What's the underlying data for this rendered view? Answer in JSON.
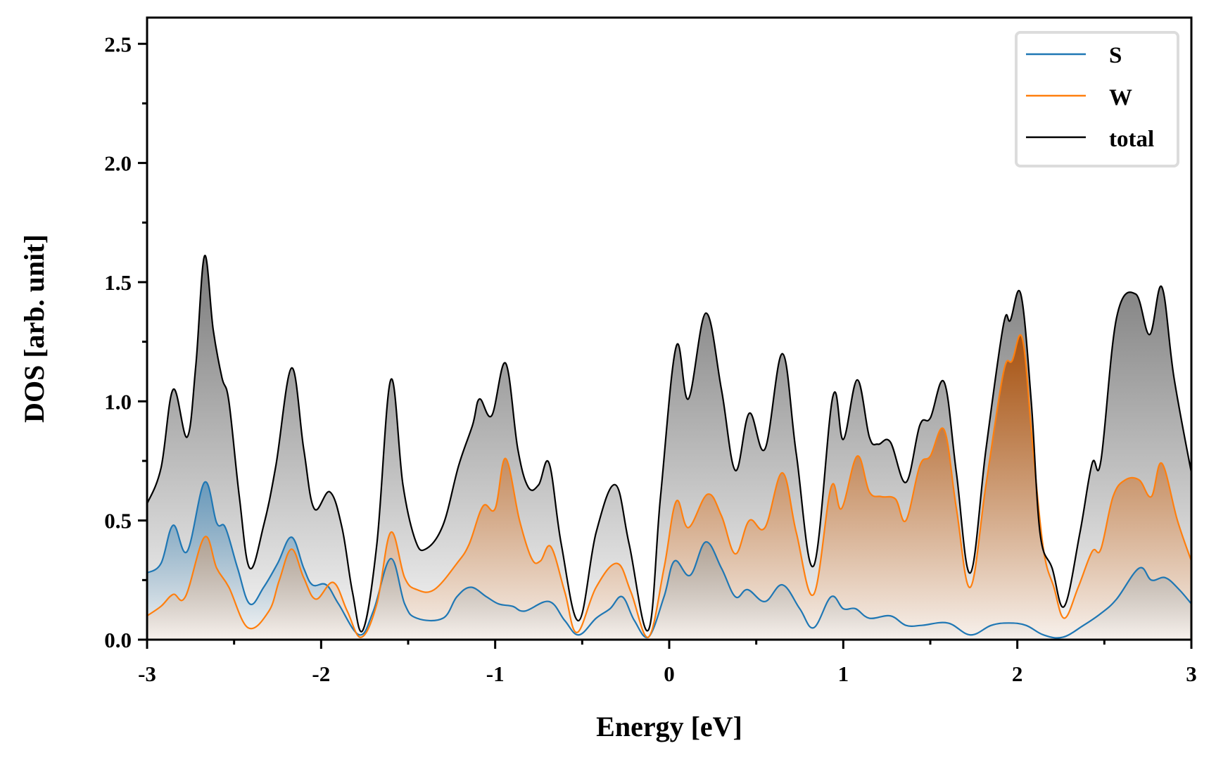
{
  "chart_data": {
    "type": "area",
    "title": "",
    "xlabel": "Energy [eV]",
    "ylabel": "DOS [arb. unit]",
    "xlim": [
      -3,
      3
    ],
    "ylim": [
      0,
      2.61
    ],
    "grid": false,
    "legend_position": "top-right",
    "x_ticks": [
      -3,
      -2,
      -1,
      0,
      1,
      2,
      3
    ],
    "x_tick_labels": [
      "-3",
      "-2",
      "-1",
      "0",
      "1",
      "2",
      "3"
    ],
    "y_ticks": [
      0.0,
      0.5,
      1.0,
      1.5,
      2.0,
      2.5
    ],
    "y_tick_labels": [
      "0.0",
      "0.5",
      "1.0",
      "1.5",
      "2.0",
      "2.5"
    ],
    "series": [
      {
        "name": "S",
        "color": "#1f77b4",
        "fill_color": "#1f77b4",
        "points": [
          [
            -3.0,
            0.28
          ],
          [
            -2.92,
            0.32
          ],
          [
            -2.85,
            0.48
          ],
          [
            -2.77,
            0.37
          ],
          [
            -2.67,
            0.66
          ],
          [
            -2.6,
            0.49
          ],
          [
            -2.55,
            0.47
          ],
          [
            -2.48,
            0.3
          ],
          [
            -2.41,
            0.15
          ],
          [
            -2.33,
            0.22
          ],
          [
            -2.25,
            0.32
          ],
          [
            -2.17,
            0.43
          ],
          [
            -2.1,
            0.3
          ],
          [
            -2.05,
            0.23
          ],
          [
            -1.97,
            0.23
          ],
          [
            -1.9,
            0.15
          ],
          [
            -1.78,
            0.02
          ],
          [
            -1.7,
            0.12
          ],
          [
            -1.6,
            0.34
          ],
          [
            -1.52,
            0.15
          ],
          [
            -1.45,
            0.09
          ],
          [
            -1.3,
            0.09
          ],
          [
            -1.22,
            0.18
          ],
          [
            -1.14,
            0.22
          ],
          [
            -1.05,
            0.18
          ],
          [
            -0.98,
            0.15
          ],
          [
            -0.9,
            0.14
          ],
          [
            -0.83,
            0.12
          ],
          [
            -0.69,
            0.16
          ],
          [
            -0.6,
            0.08
          ],
          [
            -0.52,
            0.02
          ],
          [
            -0.42,
            0.09
          ],
          [
            -0.34,
            0.13
          ],
          [
            -0.27,
            0.18
          ],
          [
            -0.2,
            0.08
          ],
          [
            -0.12,
            0.01
          ],
          [
            -0.03,
            0.18
          ],
          [
            0.03,
            0.33
          ],
          [
            0.12,
            0.27
          ],
          [
            0.21,
            0.41
          ],
          [
            0.3,
            0.3
          ],
          [
            0.38,
            0.18
          ],
          [
            0.45,
            0.21
          ],
          [
            0.55,
            0.16
          ],
          [
            0.65,
            0.23
          ],
          [
            0.75,
            0.13
          ],
          [
            0.83,
            0.05
          ],
          [
            0.93,
            0.18
          ],
          [
            1.0,
            0.13
          ],
          [
            1.07,
            0.13
          ],
          [
            1.15,
            0.09
          ],
          [
            1.27,
            0.1
          ],
          [
            1.36,
            0.06
          ],
          [
            1.45,
            0.06
          ],
          [
            1.6,
            0.07
          ],
          [
            1.73,
            0.02
          ],
          [
            1.85,
            0.06
          ],
          [
            1.95,
            0.07
          ],
          [
            2.05,
            0.06
          ],
          [
            2.15,
            0.02
          ],
          [
            2.26,
            0.01
          ],
          [
            2.38,
            0.06
          ],
          [
            2.48,
            0.11
          ],
          [
            2.57,
            0.17
          ],
          [
            2.7,
            0.3
          ],
          [
            2.77,
            0.25
          ],
          [
            2.85,
            0.26
          ],
          [
            2.93,
            0.21
          ],
          [
            3.0,
            0.15
          ]
        ]
      },
      {
        "name": "W",
        "color": "#ff7f0e",
        "fill_color": "#a65211",
        "points": [
          [
            -3.0,
            0.1
          ],
          [
            -2.92,
            0.14
          ],
          [
            -2.85,
            0.19
          ],
          [
            -2.78,
            0.18
          ],
          [
            -2.67,
            0.43
          ],
          [
            -2.6,
            0.3
          ],
          [
            -2.53,
            0.22
          ],
          [
            -2.42,
            0.05
          ],
          [
            -2.3,
            0.12
          ],
          [
            -2.24,
            0.25
          ],
          [
            -2.17,
            0.38
          ],
          [
            -2.1,
            0.26
          ],
          [
            -2.03,
            0.17
          ],
          [
            -1.93,
            0.24
          ],
          [
            -1.85,
            0.12
          ],
          [
            -1.77,
            0.01
          ],
          [
            -1.68,
            0.15
          ],
          [
            -1.6,
            0.45
          ],
          [
            -1.52,
            0.26
          ],
          [
            -1.45,
            0.21
          ],
          [
            -1.35,
            0.21
          ],
          [
            -1.22,
            0.32
          ],
          [
            -1.15,
            0.4
          ],
          [
            -1.07,
            0.56
          ],
          [
            -1.0,
            0.55
          ],
          [
            -0.94,
            0.76
          ],
          [
            -0.86,
            0.5
          ],
          [
            -0.79,
            0.34
          ],
          [
            -0.74,
            0.33
          ],
          [
            -0.68,
            0.39
          ],
          [
            -0.6,
            0.2
          ],
          [
            -0.53,
            0.03
          ],
          [
            -0.42,
            0.22
          ],
          [
            -0.3,
            0.32
          ],
          [
            -0.22,
            0.2
          ],
          [
            -0.12,
            0.01
          ],
          [
            -0.03,
            0.3
          ],
          [
            0.04,
            0.58
          ],
          [
            0.11,
            0.47
          ],
          [
            0.22,
            0.61
          ],
          [
            0.3,
            0.52
          ],
          [
            0.38,
            0.36
          ],
          [
            0.46,
            0.5
          ],
          [
            0.55,
            0.47
          ],
          [
            0.65,
            0.7
          ],
          [
            0.73,
            0.45
          ],
          [
            0.83,
            0.19
          ],
          [
            0.93,
            0.64
          ],
          [
            0.99,
            0.55
          ],
          [
            1.08,
            0.77
          ],
          [
            1.15,
            0.62
          ],
          [
            1.22,
            0.6
          ],
          [
            1.3,
            0.59
          ],
          [
            1.36,
            0.5
          ],
          [
            1.44,
            0.73
          ],
          [
            1.5,
            0.77
          ],
          [
            1.58,
            0.88
          ],
          [
            1.65,
            0.55
          ],
          [
            1.73,
            0.22
          ],
          [
            1.82,
            0.65
          ],
          [
            1.92,
            1.12
          ],
          [
            1.97,
            1.17
          ],
          [
            2.03,
            1.26
          ],
          [
            2.09,
            0.8
          ],
          [
            2.15,
            0.38
          ],
          [
            2.21,
            0.22
          ],
          [
            2.27,
            0.09
          ],
          [
            2.35,
            0.22
          ],
          [
            2.43,
            0.37
          ],
          [
            2.48,
            0.38
          ],
          [
            2.55,
            0.6
          ],
          [
            2.62,
            0.67
          ],
          [
            2.7,
            0.67
          ],
          [
            2.77,
            0.6
          ],
          [
            2.83,
            0.74
          ],
          [
            2.92,
            0.5
          ],
          [
            3.0,
            0.33
          ]
        ]
      },
      {
        "name": "total",
        "color": "#000000",
        "fill_color": "#7f7f7f",
        "points": [
          [
            -3.0,
            0.57
          ],
          [
            -2.92,
            0.72
          ],
          [
            -2.85,
            1.05
          ],
          [
            -2.77,
            0.85
          ],
          [
            -2.72,
            1.15
          ],
          [
            -2.67,
            1.61
          ],
          [
            -2.62,
            1.3
          ],
          [
            -2.57,
            1.1
          ],
          [
            -2.53,
            1.0
          ],
          [
            -2.47,
            0.6
          ],
          [
            -2.41,
            0.3
          ],
          [
            -2.33,
            0.48
          ],
          [
            -2.26,
            0.73
          ],
          [
            -2.17,
            1.14
          ],
          [
            -2.1,
            0.8
          ],
          [
            -2.04,
            0.55
          ],
          [
            -1.95,
            0.62
          ],
          [
            -1.88,
            0.47
          ],
          [
            -1.82,
            0.2
          ],
          [
            -1.76,
            0.04
          ],
          [
            -1.68,
            0.4
          ],
          [
            -1.6,
            1.09
          ],
          [
            -1.53,
            0.65
          ],
          [
            -1.46,
            0.42
          ],
          [
            -1.4,
            0.38
          ],
          [
            -1.3,
            0.48
          ],
          [
            -1.21,
            0.73
          ],
          [
            -1.13,
            0.9
          ],
          [
            -1.09,
            1.01
          ],
          [
            -1.02,
            0.94
          ],
          [
            -0.94,
            1.16
          ],
          [
            -0.87,
            0.8
          ],
          [
            -0.81,
            0.64
          ],
          [
            -0.75,
            0.65
          ],
          [
            -0.69,
            0.74
          ],
          [
            -0.62,
            0.4
          ],
          [
            -0.52,
            0.08
          ],
          [
            -0.42,
            0.45
          ],
          [
            -0.31,
            0.65
          ],
          [
            -0.23,
            0.4
          ],
          [
            -0.12,
            0.04
          ],
          [
            -0.05,
            0.6
          ],
          [
            0.04,
            1.23
          ],
          [
            0.11,
            1.01
          ],
          [
            0.21,
            1.37
          ],
          [
            0.3,
            1.05
          ],
          [
            0.38,
            0.71
          ],
          [
            0.46,
            0.95
          ],
          [
            0.55,
            0.8
          ],
          [
            0.65,
            1.2
          ],
          [
            0.73,
            0.78
          ],
          [
            0.83,
            0.31
          ],
          [
            0.94,
            1.02
          ],
          [
            1.0,
            0.84
          ],
          [
            1.08,
            1.09
          ],
          [
            1.15,
            0.85
          ],
          [
            1.2,
            0.82
          ],
          [
            1.27,
            0.83
          ],
          [
            1.36,
            0.66
          ],
          [
            1.44,
            0.9
          ],
          [
            1.5,
            0.93
          ],
          [
            1.58,
            1.08
          ],
          [
            1.65,
            0.7
          ],
          [
            1.73,
            0.28
          ],
          [
            1.82,
            0.8
          ],
          [
            1.92,
            1.32
          ],
          [
            1.96,
            1.34
          ],
          [
            2.02,
            1.45
          ],
          [
            2.08,
            1.0
          ],
          [
            2.13,
            0.45
          ],
          [
            2.2,
            0.3
          ],
          [
            2.27,
            0.14
          ],
          [
            2.36,
            0.45
          ],
          [
            2.43,
            0.74
          ],
          [
            2.48,
            0.75
          ],
          [
            2.57,
            1.35
          ],
          [
            2.68,
            1.45
          ],
          [
            2.76,
            1.28
          ],
          [
            2.83,
            1.48
          ],
          [
            2.9,
            1.1
          ],
          [
            3.0,
            0.7
          ]
        ]
      }
    ]
  },
  "legend": {
    "items": [
      {
        "label": "S",
        "color": "#1f77b4"
      },
      {
        "label": "W",
        "color": "#ff7f0e"
      },
      {
        "label": "total",
        "color": "#000000"
      }
    ]
  }
}
